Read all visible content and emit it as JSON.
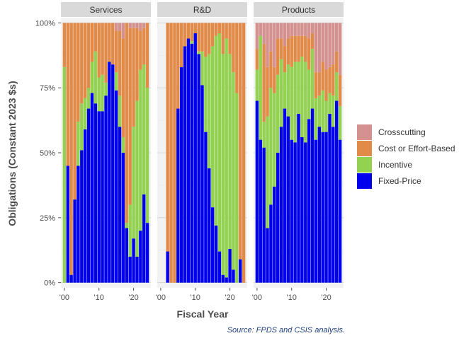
{
  "chart_data": {
    "type": "bar",
    "stacked": true,
    "normalized_percent": true,
    "xlabel": "Fiscal Year",
    "ylabel": "Obligations (Constant 2023 $s)",
    "x_ticks": [
      {
        "value": 2000,
        "label": "'00"
      },
      {
        "value": 2010,
        "label": "'10"
      },
      {
        "value": 2020,
        "label": "'20"
      }
    ],
    "y_ticks": [
      {
        "value": 0,
        "label": "0%"
      },
      {
        "value": 25,
        "label": "25%"
      },
      {
        "value": 50,
        "label": "50%"
      },
      {
        "value": 75,
        "label": "75%"
      },
      {
        "value": 100,
        "label": "100%"
      }
    ],
    "ylim": [
      -2,
      102
    ],
    "xlim": [
      1999,
      2025
    ],
    "grid": true,
    "legend_position": "right",
    "stack_order": [
      "Fixed-Price",
      "Incentive",
      "Cost or Effort-Based",
      "Crosscutting"
    ],
    "legend": [
      {
        "name": "Crosscutting",
        "color": "#d4918f"
      },
      {
        "name": "Cost or Effort-Based",
        "color": "#e28a48"
      },
      {
        "name": "Incentive",
        "color": "#93d151"
      },
      {
        "name": "Fixed-Price",
        "color": "#0000ee"
      }
    ],
    "panels": [
      {
        "name": "Services",
        "years": [
          2000,
          2001,
          2002,
          2003,
          2004,
          2005,
          2006,
          2007,
          2008,
          2009,
          2010,
          2011,
          2012,
          2013,
          2014,
          2015,
          2016,
          2017,
          2018,
          2019,
          2020,
          2021,
          2022,
          2023,
          2024
        ],
        "series": [
          {
            "name": "Fixed-Price",
            "values": [
              0,
              45,
              3,
              32,
              45,
              51,
              59,
              67,
              73,
              69,
              66,
              66,
              72,
              85,
              84,
              74,
              60,
              50,
              21,
              10,
              17,
              10,
              20,
              34,
              23
            ]
          },
          {
            "name": "Incentive",
            "values": [
              83,
              0,
              0,
              0,
              17,
              18,
              12,
              8,
              12,
              20,
              13,
              14,
              5,
              0,
              0,
              7,
              12,
              6,
              2,
              20,
              43,
              60,
              62,
              50,
              52
            ]
          },
          {
            "name": "Cost or Effort-Based",
            "values": [
              17,
              55,
              97,
              68,
              38,
              31,
              29,
              25,
              15,
              11,
              21,
              20,
              23,
              15,
              16,
              16,
              25,
              38,
              77,
              68,
              38,
              28,
              15,
              14,
              25
            ]
          },
          {
            "name": "Crosscutting",
            "values": [
              0,
              0,
              0,
              0,
              0,
              0,
              0,
              0,
              0,
              0,
              0,
              0,
              0,
              0,
              0,
              3,
              3,
              6,
              0,
              2,
              2,
              2,
              3,
              2,
              0
            ]
          }
        ]
      },
      {
        "name": "R&D",
        "years": [
          2002,
          2003,
          2004,
          2005,
          2006,
          2007,
          2008,
          2009,
          2010,
          2011,
          2012,
          2013,
          2014,
          2015,
          2016,
          2017,
          2018,
          2019,
          2020,
          2021,
          2022,
          2023,
          2024
        ],
        "series": [
          {
            "name": "Fixed-Price",
            "values": [
              12,
              0,
              0,
              67,
              83,
              91,
              94,
              92,
              96,
              88,
              76,
              58,
              44,
              29,
              22,
              12,
              3,
              2,
              13,
              5,
              0,
              9,
              0
            ]
          },
          {
            "name": "Incentive",
            "values": [
              0,
              0,
              0,
              0,
              0,
              0,
              0,
              1,
              0,
              1,
              13,
              29,
              44,
              62,
              73,
              84,
              85,
              92,
              75,
              76,
              73,
              0,
              0
            ]
          },
          {
            "name": "Cost or Effort-Based",
            "values": [
              88,
              100,
              100,
              33,
              17,
              9,
              6,
              7,
              4,
              11,
              11,
              13,
              12,
              9,
              5,
              4,
              12,
              6,
              12,
              19,
              27,
              91,
              100
            ]
          },
          {
            "name": "Crosscutting",
            "values": [
              0,
              0,
              0,
              0,
              0,
              0,
              0,
              0,
              0,
              0,
              0,
              0,
              0,
              0,
              0,
              0,
              0,
              0,
              0,
              0,
              0,
              0,
              0
            ]
          }
        ]
      },
      {
        "name": "Products",
        "years": [
          2000,
          2001,
          2002,
          2003,
          2004,
          2005,
          2006,
          2007,
          2008,
          2009,
          2010,
          2011,
          2012,
          2013,
          2014,
          2015,
          2016,
          2017,
          2018,
          2019,
          2020,
          2021,
          2022,
          2023,
          2024
        ],
        "series": [
          {
            "name": "Fixed-Price",
            "values": [
              70,
              55,
              52,
              21,
              30,
              37,
              50,
              60,
              67,
              64,
              55,
              54,
              65,
              56,
              54,
              63,
              67,
              55,
              60,
              58,
              58,
              65,
              60,
              70,
              55
            ]
          },
          {
            "name": "Incentive",
            "values": [
              12,
              40,
              10,
              43,
              45,
              36,
              30,
              26,
              14,
              20,
              28,
              31,
              20,
              31,
              31,
              19,
              23,
              16,
              12,
              16,
              12,
              8,
              12,
              11,
              13
            ]
          },
          {
            "name": "Cost or Effort-Based",
            "values": [
              8,
              0,
              30,
              19,
              14,
              10,
              14,
              8,
              10,
              10,
              12,
              10,
              10,
              8,
              10,
              12,
              6,
              10,
              9,
              11,
              12,
              10,
              12,
              8,
              12
            ]
          },
          {
            "name": "Crosscutting",
            "values": [
              10,
              5,
              8,
              17,
              11,
              17,
              6,
              6,
              9,
              6,
              5,
              5,
              5,
              5,
              5,
              6,
              4,
              19,
              19,
              15,
              18,
              17,
              16,
              11,
              20
            ]
          }
        ]
      }
    ]
  },
  "source_note": "Source: FPDS and CSIS analysis."
}
